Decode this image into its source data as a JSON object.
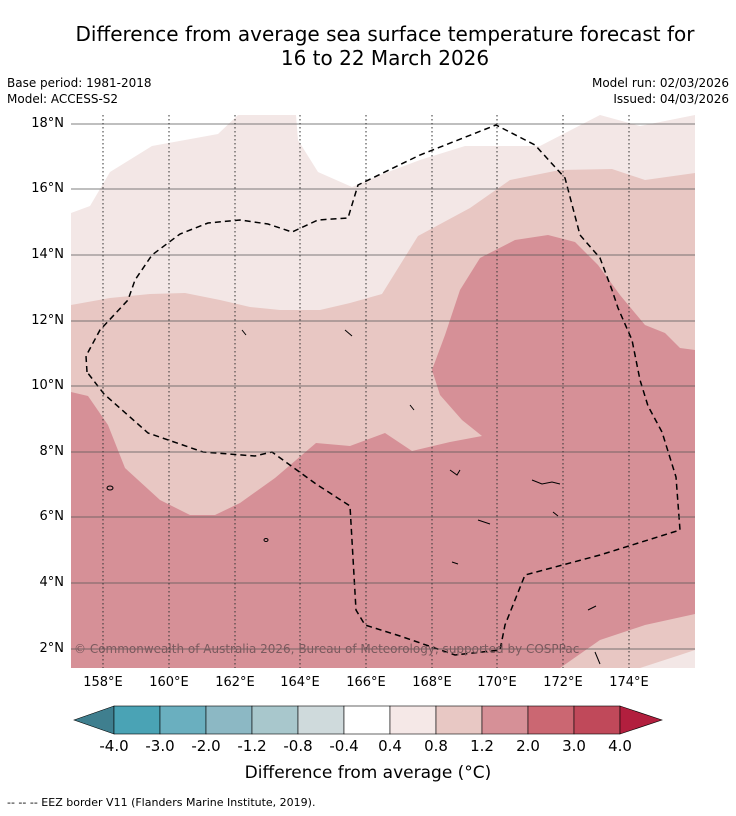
{
  "title_line1": "Difference from average sea surface temperature forecast for",
  "title_line2": "16 to 22 March 2026",
  "meta": {
    "base_period": "Base period: 1981-2018",
    "model": "Model: ACCESS-S2",
    "model_run": "Model run: 02/03/2026",
    "issued": "Issued: 04/03/2026"
  },
  "map": {
    "lat_labels": [
      "18°N",
      "16°N",
      "14°N",
      "12°N",
      "10°N",
      "8°N",
      "6°N",
      "4°N",
      "2°N"
    ],
    "lon_labels": [
      "158°E",
      "160°E",
      "162°E",
      "164°E",
      "166°E",
      "168°E",
      "170°E",
      "172°E",
      "174°E"
    ],
    "copyright": "© Commonwealth of Australia 2026, Bureau of Meteorology, supported by COSPPac"
  },
  "colorbar": {
    "labels": [
      "-4.0",
      "-3.0",
      "-2.0",
      "-1.2",
      "-0.8",
      "-0.4",
      "0.4",
      "0.8",
      "1.2",
      "2.0",
      "3.0",
      "4.0"
    ],
    "colors": [
      "#3f7f8f",
      "#4aa3b5",
      "#6aafbf",
      "#8cb8c4",
      "#a8c7cc",
      "#cfdadc",
      "#ffffff",
      "#f5e8e7",
      "#e8c8c4",
      "#d69097",
      "#cb6772",
      "#c0495a",
      "#b21f3e"
    ],
    "title": "Difference from average (°C)"
  },
  "footnote": "-- -- -- EEZ border V11 (Flanders Marine Institute, 2019)."
}
